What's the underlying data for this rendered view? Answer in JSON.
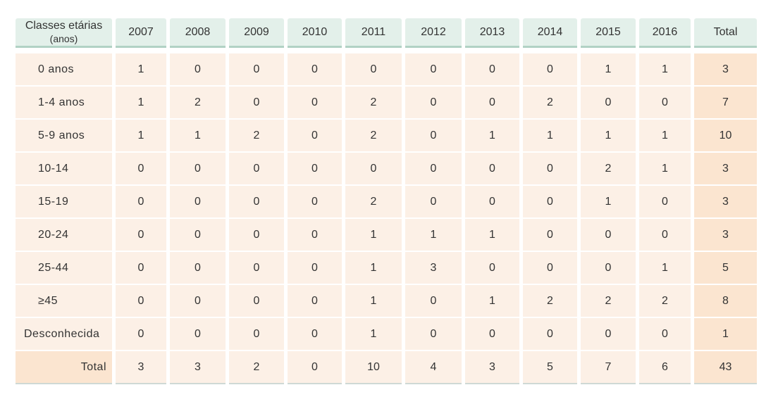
{
  "table": {
    "header": {
      "label_line1": "Classes etárias",
      "label_line2": "(anos)",
      "years": [
        "2007",
        "2008",
        "2009",
        "2010",
        "2011",
        "2012",
        "2013",
        "2014",
        "2015",
        "2016"
      ],
      "total": "Total"
    },
    "rows": [
      {
        "label": "0 anos",
        "values": [
          "1",
          "0",
          "0",
          "0",
          "0",
          "0",
          "0",
          "0",
          "1",
          "1"
        ],
        "total": "3"
      },
      {
        "label": "1-4 anos",
        "values": [
          "1",
          "2",
          "0",
          "0",
          "2",
          "0",
          "0",
          "2",
          "0",
          "0"
        ],
        "total": "7"
      },
      {
        "label": "5-9 anos",
        "values": [
          "1",
          "1",
          "2",
          "0",
          "2",
          "0",
          "1",
          "1",
          "1",
          "1"
        ],
        "total": "10"
      },
      {
        "label": "10-14",
        "values": [
          "0",
          "0",
          "0",
          "0",
          "0",
          "0",
          "0",
          "0",
          "2",
          "1"
        ],
        "total": "3"
      },
      {
        "label": "15-19",
        "values": [
          "0",
          "0",
          "0",
          "0",
          "2",
          "0",
          "0",
          "0",
          "1",
          "0"
        ],
        "total": "3"
      },
      {
        "label": "20-24",
        "values": [
          "0",
          "0",
          "0",
          "0",
          "1",
          "1",
          "1",
          "0",
          "0",
          "0"
        ],
        "total": "3"
      },
      {
        "label": "25-44",
        "values": [
          "0",
          "0",
          "0",
          "0",
          "1",
          "3",
          "0",
          "0",
          "0",
          "1"
        ],
        "total": "5"
      },
      {
        "label": "≥45",
        "values": [
          "0",
          "0",
          "0",
          "0",
          "1",
          "0",
          "1",
          "2",
          "2",
          "2"
        ],
        "total": "8"
      },
      {
        "label": "Desconhecida",
        "values": [
          "0",
          "0",
          "0",
          "0",
          "1",
          "0",
          "0",
          "0",
          "0",
          "0"
        ],
        "total": "1"
      }
    ],
    "total_row": {
      "label": "Total",
      "values": [
        "3",
        "3",
        "2",
        "0",
        "10",
        "4",
        "3",
        "5",
        "7",
        "6"
      ],
      "total": "43"
    },
    "colors": {
      "header_bg": "#e3f0ea",
      "header_border": "#b2d2c5",
      "body_bg": "#fcf0e6",
      "total_bg": "#fbe5d0"
    }
  }
}
